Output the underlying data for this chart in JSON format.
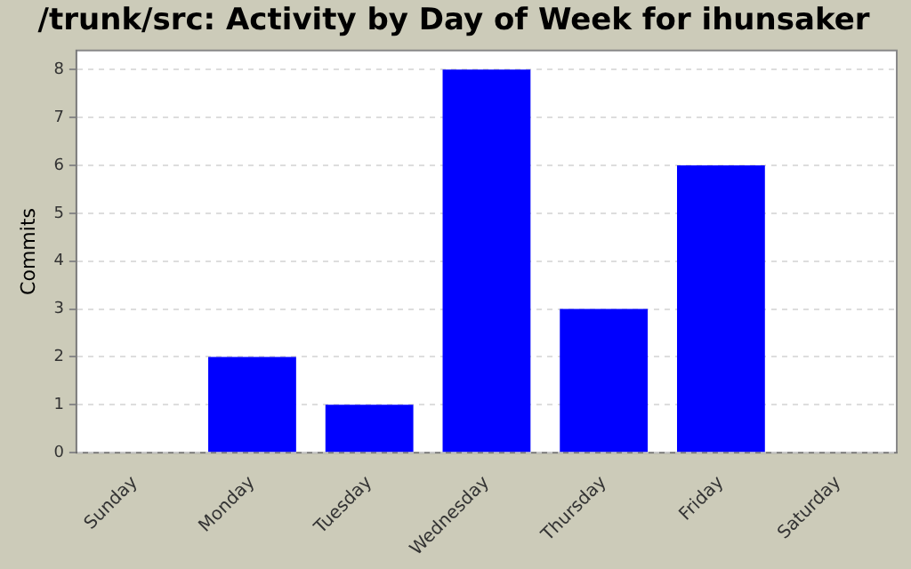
{
  "chart_data": {
    "type": "bar",
    "title": "/trunk/src: Activity by Day of Week for ihunsaker",
    "ylabel": "Commits",
    "categories": [
      "Sunday",
      "Monday",
      "Tuesday",
      "Wednesday",
      "Thursday",
      "Friday",
      "Saturday"
    ],
    "values": [
      0,
      2,
      1,
      8,
      3,
      6,
      0
    ],
    "color": "#0000ff",
    "ylim": [
      0,
      8.4
    ],
    "yticks": [
      0,
      1,
      2,
      3,
      4,
      5,
      6,
      7,
      8
    ],
    "grid": "y",
    "legend": false
  }
}
